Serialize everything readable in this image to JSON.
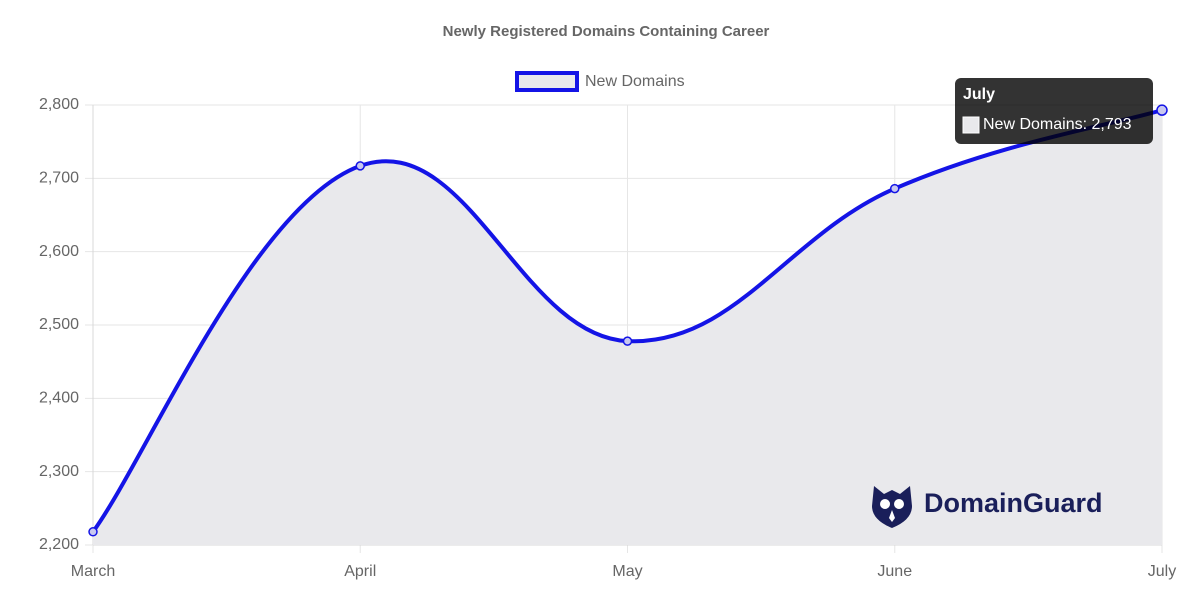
{
  "chart_data": {
    "type": "line",
    "title": "Newly Registered Domains Containing Career",
    "categories": [
      "March",
      "April",
      "May",
      "June",
      "July"
    ],
    "series": [
      {
        "name": "New Domains",
        "color": "#1414e6",
        "fill": "#e9e9ec",
        "values": [
          2218,
          2717,
          2478,
          2686,
          2793
        ]
      }
    ],
    "ylim": [
      2200,
      2800
    ],
    "yticks": [
      {
        "value": 2200,
        "label": "2,200"
      },
      {
        "value": 2300,
        "label": "2,300"
      },
      {
        "value": 2400,
        "label": "2,400"
      },
      {
        "value": 2500,
        "label": "2,500"
      },
      {
        "value": 2600,
        "label": "2,600"
      },
      {
        "value": 2700,
        "label": "2,700"
      },
      {
        "value": 2800,
        "label": "2,800"
      }
    ],
    "grid": true,
    "legend": "top",
    "tooltip": {
      "title": "July",
      "text": "New Domains: 2,793"
    },
    "watermark": "DomainGuard"
  }
}
